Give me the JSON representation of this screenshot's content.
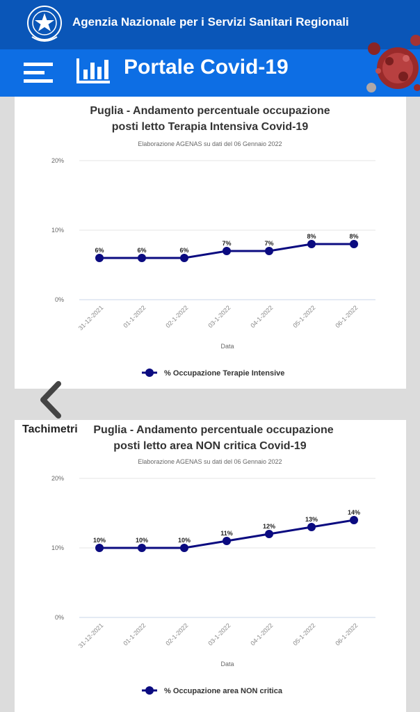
{
  "header": {
    "agency": "Agenzia Nazionale per i Servizi Sanitari Regionali",
    "portal": "Portale Covid-19"
  },
  "nav": {
    "back_icon": "chevron-left-icon",
    "tab_label": "Tachimetri"
  },
  "colors": {
    "topbar": "#0a56b8",
    "subbar": "#0d6ee4",
    "series": "#0b0b80",
    "grid": "#e6e6e6"
  },
  "chart_data": [
    {
      "type": "line",
      "title": "Puglia - Andamento percentuale occupazione posti letto Terapia Intensiva Covid-19",
      "title_lines": [
        "Puglia - Andamento percentuale occupazione",
        "posti letto Terapia Intensiva Covid-19"
      ],
      "subtitle": "Elaborazione AGENAS su dati del 06 Gennaio 2022",
      "categories": [
        "31-12-2021",
        "01-1-2022",
        "02-1-2022",
        "03-1-2022",
        "04-1-2022",
        "05-1-2022",
        "06-1-2022"
      ],
      "series": [
        {
          "name": "% Occupazione Terapie Intensive",
          "values": [
            6,
            6,
            6,
            7,
            7,
            8,
            8
          ]
        }
      ],
      "xlabel": "Data",
      "ylabel": "",
      "ylim": [
        0,
        20
      ],
      "yticks": [
        "0%",
        "10%",
        "20%"
      ],
      "data_labels": [
        "6%",
        "6%",
        "6%",
        "7%",
        "7%",
        "8%",
        "8%"
      ],
      "grid": true,
      "legend": "bottom"
    },
    {
      "type": "line",
      "title": "Puglia - Andamento percentuale occupazione posti letto area NON critica Covid-19",
      "title_lines": [
        "Puglia - Andamento percentuale occupazione",
        "posti letto area NON critica Covid-19"
      ],
      "subtitle": "Elaborazione AGENAS su dati del 06 Gennaio 2022",
      "categories": [
        "31-12-2021",
        "01-1-2022",
        "02-1-2022",
        "03-1-2022",
        "04-1-2022",
        "05-1-2022",
        "06-1-2022"
      ],
      "series": [
        {
          "name": "% Occupazione area NON critica",
          "values": [
            10,
            10,
            10,
            11,
            12,
            13,
            14
          ]
        }
      ],
      "xlabel": "Data",
      "ylabel": "",
      "ylim": [
        0,
        20
      ],
      "yticks": [
        "0%",
        "10%",
        "20%"
      ],
      "data_labels": [
        "10%",
        "10%",
        "10%",
        "11%",
        "12%",
        "13%",
        "14%"
      ],
      "grid": true,
      "legend": "bottom"
    }
  ]
}
